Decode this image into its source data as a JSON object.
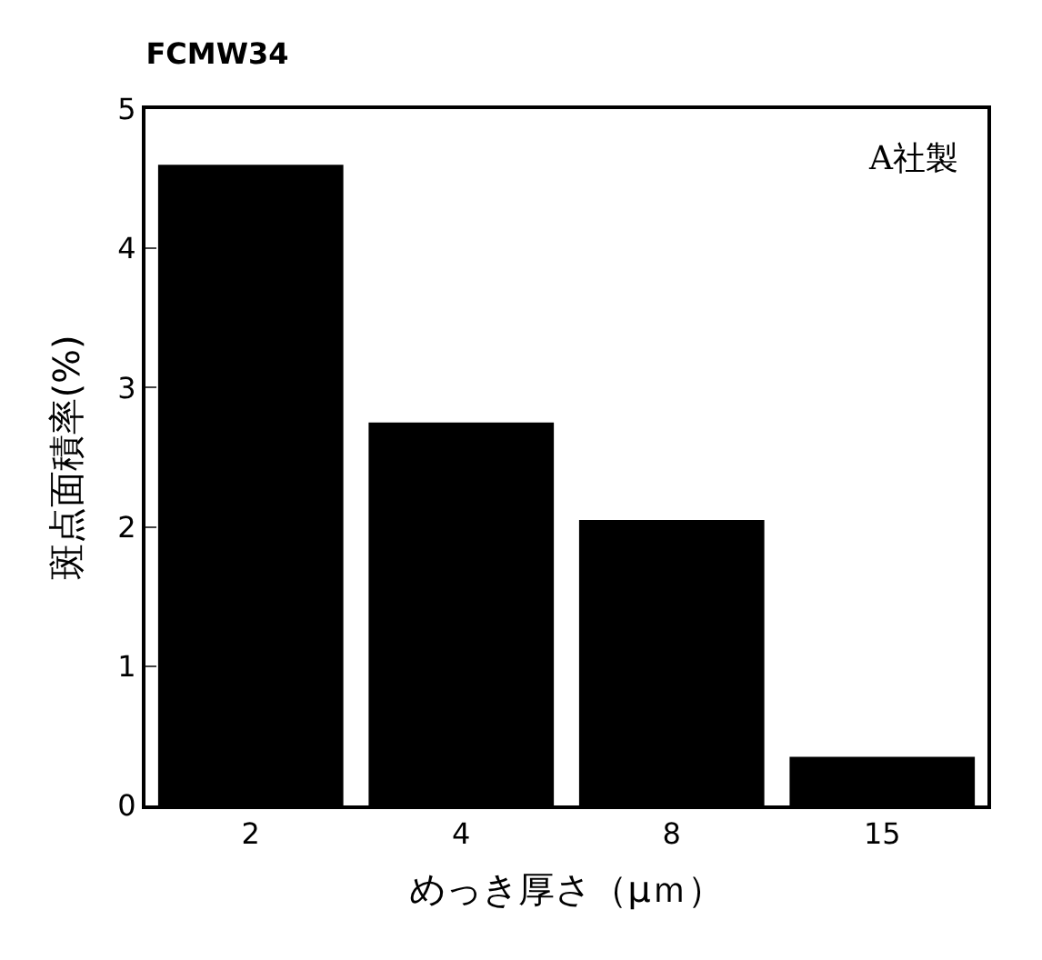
{
  "chart_data": {
    "type": "bar",
    "title": "FCMW34",
    "xlabel": "めっき厚さ（μｍ）",
    "ylabel": "斑点面積率(%)",
    "categories": [
      "2",
      "4",
      "8",
      "15"
    ],
    "values": [
      4.6,
      2.75,
      2.05,
      0.35
    ],
    "color": "#000000",
    "ylim": [
      0,
      5
    ],
    "yticks": [
      0,
      1,
      2,
      3,
      4,
      5
    ],
    "annotations": [
      "A社製"
    ]
  }
}
